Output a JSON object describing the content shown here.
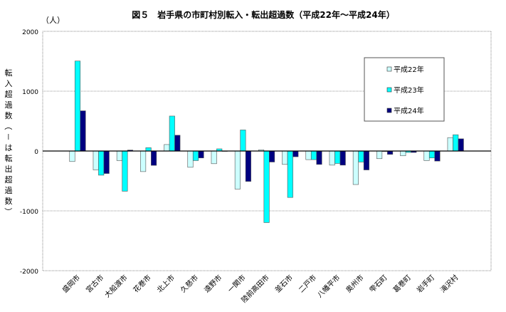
{
  "chart_data": {
    "type": "bar",
    "title": "図５　岩手県の市町村別転入・転出超過数（平成22年～平成24年）",
    "unit_label": "（人）",
    "ylabel": "転入超過数（－は転出超過数）",
    "xlabel": "",
    "ylim": [
      -2000,
      2000
    ],
    "yticks": [
      2000,
      1000,
      0,
      -1000,
      -2000
    ],
    "grid": true,
    "legend_position": "top-right",
    "categories": [
      "盛岡市",
      "宮古市",
      "大船渡市",
      "花巻市",
      "北上市",
      "久慈市",
      "遠野市",
      "一関市",
      "陸前高田市",
      "釜石市",
      "二戸市",
      "八幡平市",
      "奥州市",
      "雫石町",
      "葛巻町",
      "岩手町",
      "滝沢村"
    ],
    "series": [
      {
        "name": "平成22年",
        "color": "#ccffff",
        "values": [
          -176,
          -316,
          -160,
          -344,
          108,
          -272,
          -212,
          -636,
          20,
          -224,
          -144,
          -236,
          -560,
          -128,
          -80,
          -160,
          224
        ]
      },
      {
        "name": "平成23年",
        "color": "#00ffff",
        "values": [
          1504,
          -404,
          -672,
          56,
          584,
          -160,
          36,
          352,
          -1196,
          -776,
          -144,
          -208,
          -184,
          -8,
          -24,
          -116,
          272
        ]
      },
      {
        "name": "平成24年",
        "color": "#000080",
        "values": [
          672,
          -376,
          16,
          -240,
          264,
          -116,
          0,
          -508,
          -184,
          -96,
          -224,
          -236,
          -316,
          -56,
          -24,
          -168,
          204
        ]
      }
    ]
  }
}
